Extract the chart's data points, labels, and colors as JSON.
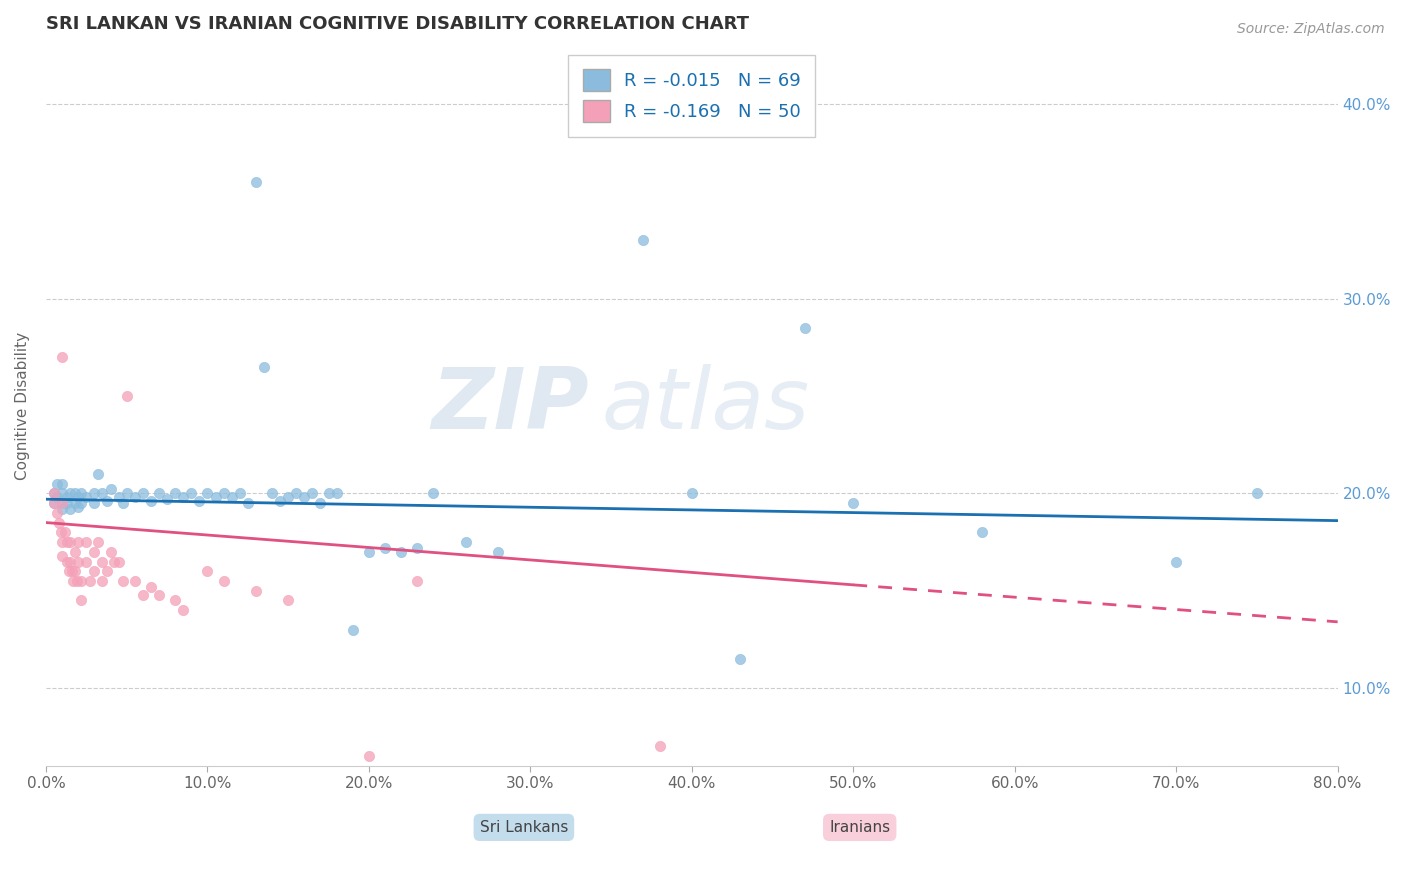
{
  "title": "SRI LANKAN VS IRANIAN COGNITIVE DISABILITY CORRELATION CHART",
  "source": "Source: ZipAtlas.com",
  "xlim": [
    0.0,
    0.8
  ],
  "ylim": [
    0.06,
    0.43
  ],
  "sri_lankans_label": "Sri Lankans",
  "iranians_label": "Iranians",
  "sri_lankan_color": "#8BBCDD",
  "iranian_color": "#F4A0B8",
  "sri_lankan_R": -0.015,
  "sri_lankan_N": 69,
  "iranian_R": -0.169,
  "iranian_N": 50,
  "watermark_zip": "ZIP",
  "watermark_atlas": "atlas",
  "sri_lankan_line": [
    0.0,
    0.197,
    0.8,
    0.186
  ],
  "iranian_line_solid": [
    0.0,
    0.185,
    0.5,
    0.153
  ],
  "iranian_line_dash": [
    0.5,
    0.153,
    0.8,
    0.134
  ],
  "sri_lankan_scatter": [
    [
      0.005,
      0.2
    ],
    [
      0.005,
      0.195
    ],
    [
      0.007,
      0.205
    ],
    [
      0.007,
      0.198
    ],
    [
      0.01,
      0.2
    ],
    [
      0.01,
      0.195
    ],
    [
      0.01,
      0.192
    ],
    [
      0.01,
      0.205
    ],
    [
      0.013,
      0.198
    ],
    [
      0.013,
      0.195
    ],
    [
      0.015,
      0.2
    ],
    [
      0.015,
      0.192
    ],
    [
      0.018,
      0.2
    ],
    [
      0.018,
      0.195
    ],
    [
      0.02,
      0.198
    ],
    [
      0.02,
      0.193
    ],
    [
      0.022,
      0.2
    ],
    [
      0.022,
      0.195
    ],
    [
      0.025,
      0.198
    ],
    [
      0.03,
      0.2
    ],
    [
      0.03,
      0.195
    ],
    [
      0.032,
      0.21
    ],
    [
      0.035,
      0.2
    ],
    [
      0.038,
      0.196
    ],
    [
      0.04,
      0.202
    ],
    [
      0.045,
      0.198
    ],
    [
      0.048,
      0.195
    ],
    [
      0.05,
      0.2
    ],
    [
      0.055,
      0.198
    ],
    [
      0.06,
      0.2
    ],
    [
      0.065,
      0.196
    ],
    [
      0.07,
      0.2
    ],
    [
      0.075,
      0.197
    ],
    [
      0.08,
      0.2
    ],
    [
      0.085,
      0.198
    ],
    [
      0.09,
      0.2
    ],
    [
      0.095,
      0.196
    ],
    [
      0.1,
      0.2
    ],
    [
      0.105,
      0.198
    ],
    [
      0.11,
      0.2
    ],
    [
      0.115,
      0.198
    ],
    [
      0.12,
      0.2
    ],
    [
      0.125,
      0.195
    ],
    [
      0.13,
      0.36
    ],
    [
      0.135,
      0.265
    ],
    [
      0.14,
      0.2
    ],
    [
      0.145,
      0.196
    ],
    [
      0.15,
      0.198
    ],
    [
      0.155,
      0.2
    ],
    [
      0.16,
      0.198
    ],
    [
      0.165,
      0.2
    ],
    [
      0.17,
      0.195
    ],
    [
      0.175,
      0.2
    ],
    [
      0.18,
      0.2
    ],
    [
      0.19,
      0.13
    ],
    [
      0.2,
      0.17
    ],
    [
      0.21,
      0.172
    ],
    [
      0.22,
      0.17
    ],
    [
      0.23,
      0.172
    ],
    [
      0.24,
      0.2
    ],
    [
      0.26,
      0.175
    ],
    [
      0.28,
      0.17
    ],
    [
      0.37,
      0.33
    ],
    [
      0.4,
      0.2
    ],
    [
      0.43,
      0.115
    ],
    [
      0.47,
      0.285
    ],
    [
      0.5,
      0.195
    ],
    [
      0.58,
      0.18
    ],
    [
      0.7,
      0.165
    ],
    [
      0.75,
      0.2
    ]
  ],
  "iranian_scatter": [
    [
      0.005,
      0.2
    ],
    [
      0.005,
      0.195
    ],
    [
      0.007,
      0.19
    ],
    [
      0.008,
      0.185
    ],
    [
      0.009,
      0.18
    ],
    [
      0.01,
      0.27
    ],
    [
      0.01,
      0.195
    ],
    [
      0.01,
      0.175
    ],
    [
      0.01,
      0.168
    ],
    [
      0.012,
      0.18
    ],
    [
      0.013,
      0.175
    ],
    [
      0.013,
      0.165
    ],
    [
      0.014,
      0.16
    ],
    [
      0.015,
      0.175
    ],
    [
      0.015,
      0.165
    ],
    [
      0.016,
      0.16
    ],
    [
      0.017,
      0.155
    ],
    [
      0.018,
      0.17
    ],
    [
      0.018,
      0.16
    ],
    [
      0.019,
      0.155
    ],
    [
      0.02,
      0.175
    ],
    [
      0.02,
      0.165
    ],
    [
      0.022,
      0.155
    ],
    [
      0.022,
      0.145
    ],
    [
      0.025,
      0.175
    ],
    [
      0.025,
      0.165
    ],
    [
      0.027,
      0.155
    ],
    [
      0.03,
      0.17
    ],
    [
      0.03,
      0.16
    ],
    [
      0.032,
      0.175
    ],
    [
      0.035,
      0.165
    ],
    [
      0.035,
      0.155
    ],
    [
      0.038,
      0.16
    ],
    [
      0.04,
      0.17
    ],
    [
      0.042,
      0.165
    ],
    [
      0.045,
      0.165
    ],
    [
      0.048,
      0.155
    ],
    [
      0.05,
      0.25
    ],
    [
      0.055,
      0.155
    ],
    [
      0.06,
      0.148
    ],
    [
      0.065,
      0.152
    ],
    [
      0.07,
      0.148
    ],
    [
      0.08,
      0.145
    ],
    [
      0.085,
      0.14
    ],
    [
      0.1,
      0.16
    ],
    [
      0.11,
      0.155
    ],
    [
      0.13,
      0.15
    ],
    [
      0.15,
      0.145
    ],
    [
      0.2,
      0.065
    ],
    [
      0.23,
      0.155
    ],
    [
      0.38,
      0.07
    ]
  ]
}
